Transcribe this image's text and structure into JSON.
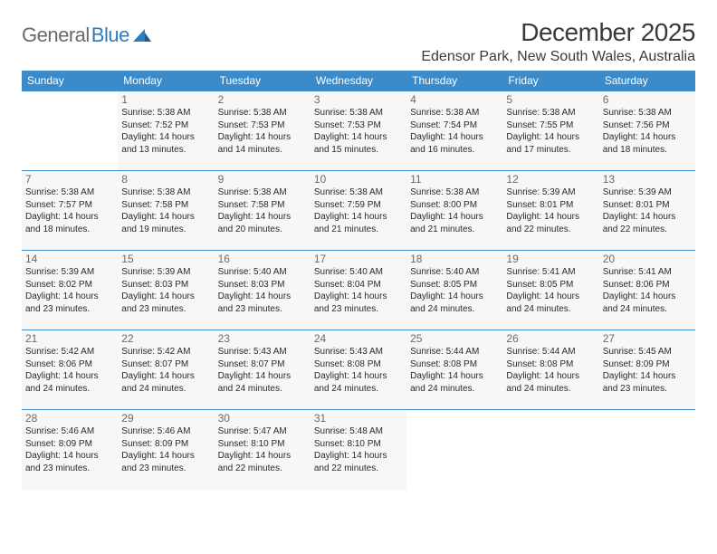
{
  "brand": {
    "name_gray": "General",
    "name_blue": "Blue"
  },
  "title": "December 2025",
  "location": "Edensor Park, New South Wales, Australia",
  "colors": {
    "header_bg": "#3b8bca",
    "header_text": "#ffffff",
    "cell_bg": "#f7f7f5",
    "border": "#3b8bca",
    "logo_gray": "#6a6a6a",
    "logo_blue": "#2f7bbf"
  },
  "day_headers": [
    "Sunday",
    "Monday",
    "Tuesday",
    "Wednesday",
    "Thursday",
    "Friday",
    "Saturday"
  ],
  "weeks": [
    [
      null,
      {
        "n": "1",
        "sr": "5:38 AM",
        "ss": "7:52 PM",
        "dl": "14 hours and 13 minutes."
      },
      {
        "n": "2",
        "sr": "5:38 AM",
        "ss": "7:53 PM",
        "dl": "14 hours and 14 minutes."
      },
      {
        "n": "3",
        "sr": "5:38 AM",
        "ss": "7:53 PM",
        "dl": "14 hours and 15 minutes."
      },
      {
        "n": "4",
        "sr": "5:38 AM",
        "ss": "7:54 PM",
        "dl": "14 hours and 16 minutes."
      },
      {
        "n": "5",
        "sr": "5:38 AM",
        "ss": "7:55 PM",
        "dl": "14 hours and 17 minutes."
      },
      {
        "n": "6",
        "sr": "5:38 AM",
        "ss": "7:56 PM",
        "dl": "14 hours and 18 minutes."
      }
    ],
    [
      {
        "n": "7",
        "sr": "5:38 AM",
        "ss": "7:57 PM",
        "dl": "14 hours and 18 minutes."
      },
      {
        "n": "8",
        "sr": "5:38 AM",
        "ss": "7:58 PM",
        "dl": "14 hours and 19 minutes."
      },
      {
        "n": "9",
        "sr": "5:38 AM",
        "ss": "7:58 PM",
        "dl": "14 hours and 20 minutes."
      },
      {
        "n": "10",
        "sr": "5:38 AM",
        "ss": "7:59 PM",
        "dl": "14 hours and 21 minutes."
      },
      {
        "n": "11",
        "sr": "5:38 AM",
        "ss": "8:00 PM",
        "dl": "14 hours and 21 minutes."
      },
      {
        "n": "12",
        "sr": "5:39 AM",
        "ss": "8:01 PM",
        "dl": "14 hours and 22 minutes."
      },
      {
        "n": "13",
        "sr": "5:39 AM",
        "ss": "8:01 PM",
        "dl": "14 hours and 22 minutes."
      }
    ],
    [
      {
        "n": "14",
        "sr": "5:39 AM",
        "ss": "8:02 PM",
        "dl": "14 hours and 23 minutes."
      },
      {
        "n": "15",
        "sr": "5:39 AM",
        "ss": "8:03 PM",
        "dl": "14 hours and 23 minutes."
      },
      {
        "n": "16",
        "sr": "5:40 AM",
        "ss": "8:03 PM",
        "dl": "14 hours and 23 minutes."
      },
      {
        "n": "17",
        "sr": "5:40 AM",
        "ss": "8:04 PM",
        "dl": "14 hours and 23 minutes."
      },
      {
        "n": "18",
        "sr": "5:40 AM",
        "ss": "8:05 PM",
        "dl": "14 hours and 24 minutes."
      },
      {
        "n": "19",
        "sr": "5:41 AM",
        "ss": "8:05 PM",
        "dl": "14 hours and 24 minutes."
      },
      {
        "n": "20",
        "sr": "5:41 AM",
        "ss": "8:06 PM",
        "dl": "14 hours and 24 minutes."
      }
    ],
    [
      {
        "n": "21",
        "sr": "5:42 AM",
        "ss": "8:06 PM",
        "dl": "14 hours and 24 minutes."
      },
      {
        "n": "22",
        "sr": "5:42 AM",
        "ss": "8:07 PM",
        "dl": "14 hours and 24 minutes."
      },
      {
        "n": "23",
        "sr": "5:43 AM",
        "ss": "8:07 PM",
        "dl": "14 hours and 24 minutes."
      },
      {
        "n": "24",
        "sr": "5:43 AM",
        "ss": "8:08 PM",
        "dl": "14 hours and 24 minutes."
      },
      {
        "n": "25",
        "sr": "5:44 AM",
        "ss": "8:08 PM",
        "dl": "14 hours and 24 minutes."
      },
      {
        "n": "26",
        "sr": "5:44 AM",
        "ss": "8:08 PM",
        "dl": "14 hours and 24 minutes."
      },
      {
        "n": "27",
        "sr": "5:45 AM",
        "ss": "8:09 PM",
        "dl": "14 hours and 23 minutes."
      }
    ],
    [
      {
        "n": "28",
        "sr": "5:46 AM",
        "ss": "8:09 PM",
        "dl": "14 hours and 23 minutes."
      },
      {
        "n": "29",
        "sr": "5:46 AM",
        "ss": "8:09 PM",
        "dl": "14 hours and 23 minutes."
      },
      {
        "n": "30",
        "sr": "5:47 AM",
        "ss": "8:10 PM",
        "dl": "14 hours and 22 minutes."
      },
      {
        "n": "31",
        "sr": "5:48 AM",
        "ss": "8:10 PM",
        "dl": "14 hours and 22 minutes."
      },
      null,
      null,
      null
    ]
  ],
  "labels": {
    "sunrise": "Sunrise:",
    "sunset": "Sunset:",
    "daylight": "Daylight:"
  }
}
